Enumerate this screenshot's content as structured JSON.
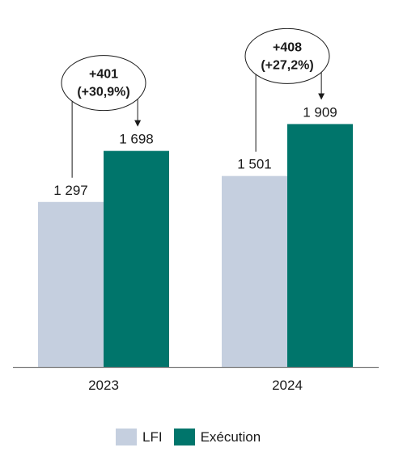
{
  "chart_data": {
    "type": "bar",
    "categories": [
      "2023",
      "2024"
    ],
    "series": [
      {
        "name": "LFI",
        "values": [
          1297,
          1501
        ],
        "labels": [
          "1 297",
          "1 501"
        ],
        "color": "#c5cfdf"
      },
      {
        "name": "Exécution",
        "values": [
          1698,
          1909
        ],
        "labels": [
          "1 698",
          "1 909"
        ],
        "color": "#00756b"
      }
    ],
    "annotations": [
      {
        "category": "2023",
        "line1": "+401",
        "line2": "(+30,9%)"
      },
      {
        "category": "2024",
        "line1": "+408",
        "line2": "(+27,2%)"
      }
    ],
    "ylim": [
      0,
      2350
    ],
    "grid": false,
    "legend_position": "bottom",
    "title": "",
    "xlabel": "",
    "ylabel": ""
  }
}
